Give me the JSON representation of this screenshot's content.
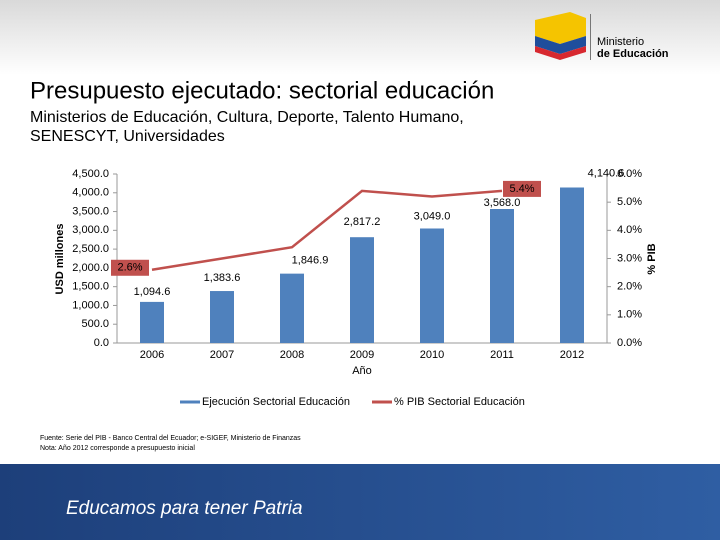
{
  "logo": {
    "line1": "Ministerio",
    "line2": "de Educación"
  },
  "footer": "Educamos para tener Patria",
  "notes": [
    "Fuente: Serie del PIB - Banco Central del Ecuador; e-SIGEF, Ministerio de Finanzas",
    "Nota: Año 2012 corresponde a presupuesto inicial"
  ],
  "chart_data": {
    "type": "bar",
    "title": "Presupuesto ejecutado: sectorial educación",
    "subtitle": [
      "Ministerios de Educación, Cultura, Deporte, Talento Humano,",
      "SENESCYT, Universidades"
    ],
    "y_label": "USD millones",
    "y2_label": "% PIB",
    "x_label": "Año",
    "categories": [
      "2006",
      "2007",
      "2008",
      "2009",
      "2010",
      "2011",
      "2012"
    ],
    "series": [
      {
        "name": "Ejecución Sectorial Educación",
        "color": "#4f81bd",
        "type": "bar",
        "values": [
          1094.6,
          1383.6,
          1846.9,
          2817.2,
          3049.0,
          3568.0,
          4140.6
        ],
        "value_labels": [
          "1,094.6",
          "1,383.6",
          "1,846.9",
          "2,817.2",
          "3,049.0",
          "3,568.0",
          "4,140.6"
        ]
      },
      {
        "name": "% PIB Sectorial Educación",
        "color": "#c0504d",
        "type": "line",
        "axis": "y2",
        "values": [
          2.6,
          3.0,
          3.4,
          5.4,
          5.2,
          5.4,
          null
        ],
        "value_labels": [
          "2.6%",
          null,
          null,
          null,
          null,
          "5.4%",
          null
        ]
      }
    ],
    "ylim": [
      0,
      4500
    ],
    "yticks": [
      {
        "value": 0,
        "label": "0.0"
      },
      {
        "value": 500,
        "label": "500.0"
      },
      {
        "value": 1000,
        "label": "1,000.0"
      },
      {
        "value": 1500,
        "label": "1,500.0"
      },
      {
        "value": 2000,
        "label": "2,000.0"
      },
      {
        "value": 2500,
        "label": "2,500.0"
      },
      {
        "value": 3000,
        "label": "3,000.0"
      },
      {
        "value": 3500,
        "label": "3,500.0"
      },
      {
        "value": 4000,
        "label": "4,000.0"
      },
      {
        "value": 4500,
        "label": "4,500.0"
      }
    ],
    "y2lim": [
      0,
      6
    ],
    "y2ticks": [
      {
        "value": 0,
        "label": "0.0%"
      },
      {
        "value": 1,
        "label": "1.0%"
      },
      {
        "value": 2,
        "label": "2.0%"
      },
      {
        "value": 3,
        "label": "3.0%"
      },
      {
        "value": 4,
        "label": "4.0%"
      },
      {
        "value": 5,
        "label": "5.0%"
      },
      {
        "value": 6,
        "label": "6.0%"
      }
    ]
  }
}
